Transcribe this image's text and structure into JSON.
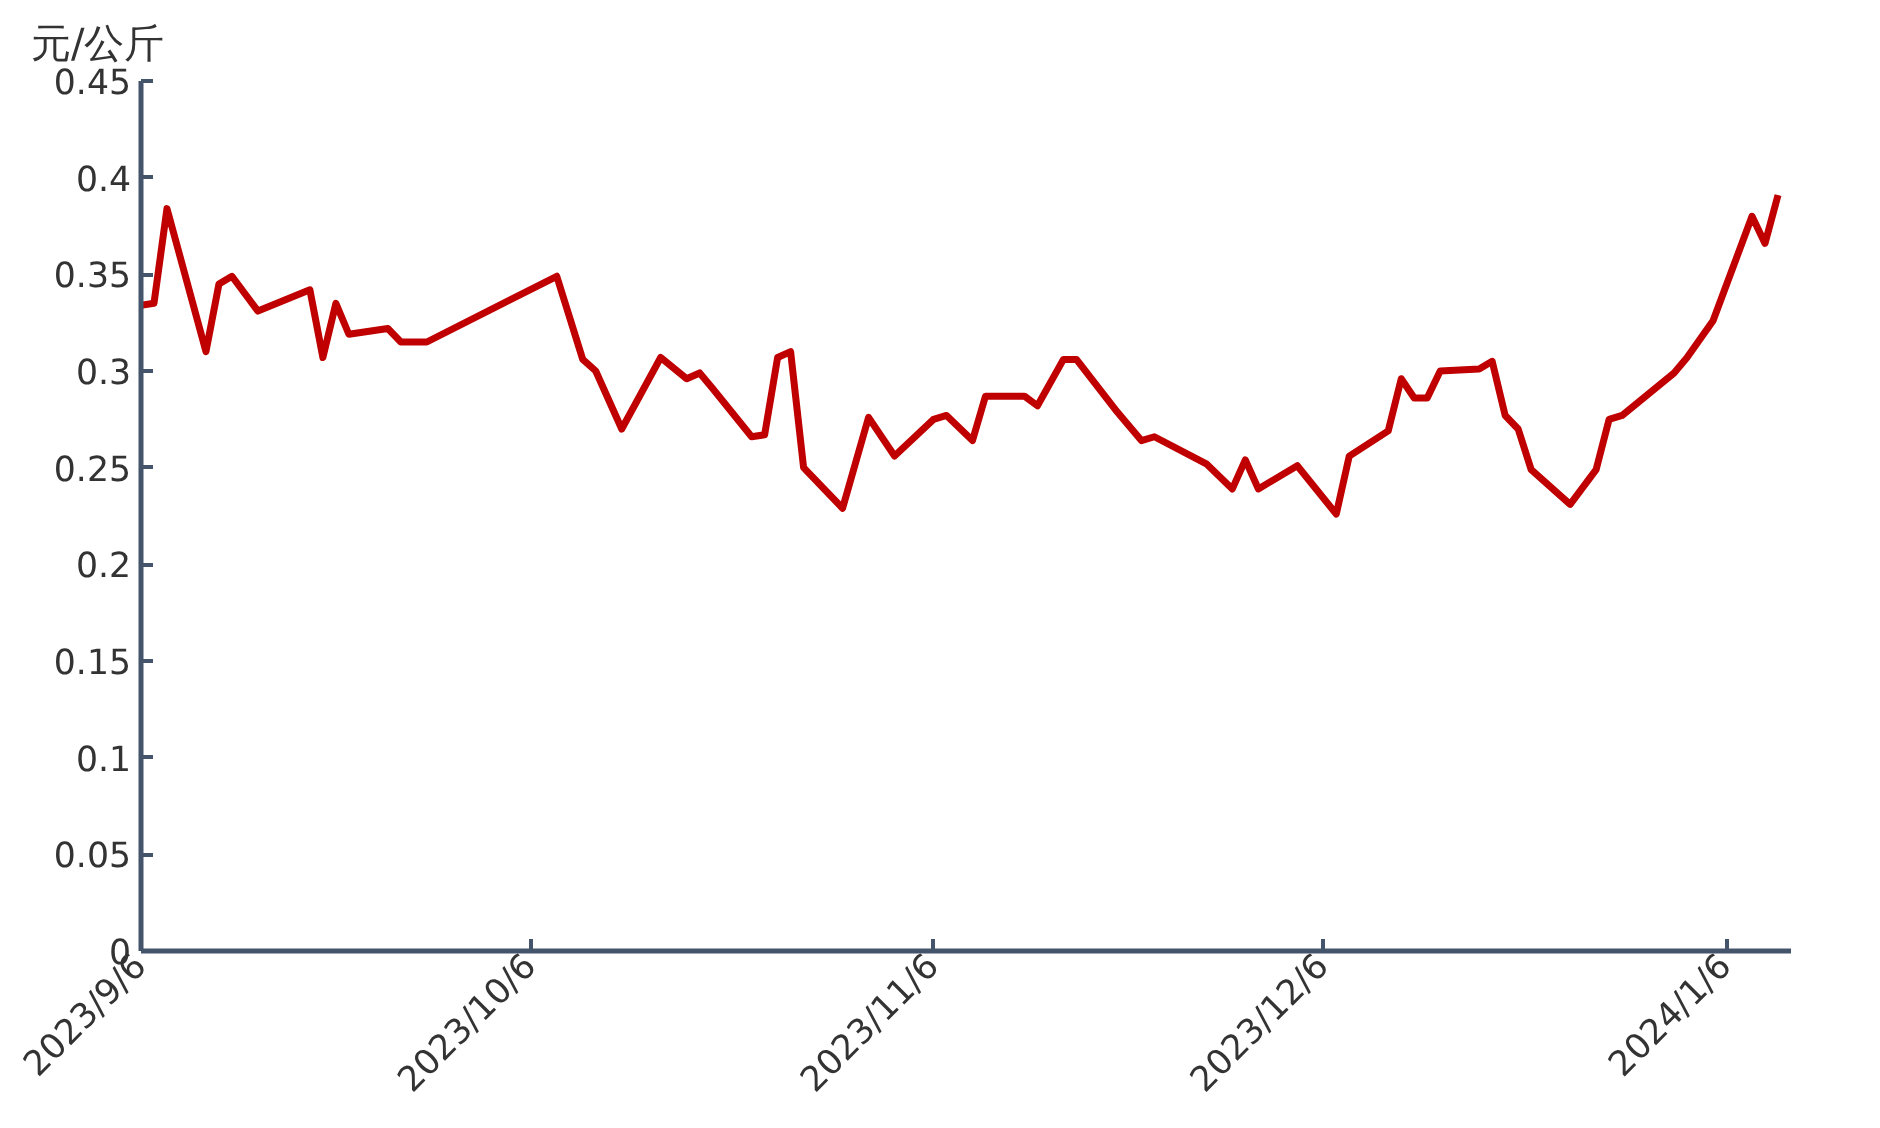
{
  "chart_data": {
    "type": "line",
    "ylabel": "元/公斤",
    "x": [
      "2023-09-06",
      "2023-09-07",
      "2023-09-08",
      "2023-09-11",
      "2023-09-12",
      "2023-09-13",
      "2023-09-15",
      "2023-09-19",
      "2023-09-20",
      "2023-09-21",
      "2023-09-22",
      "2023-09-25",
      "2023-09-26",
      "2023-09-28",
      "2023-10-08",
      "2023-10-10",
      "2023-10-11",
      "2023-10-13",
      "2023-10-16",
      "2023-10-18",
      "2023-10-19",
      "2023-10-20",
      "2023-10-23",
      "2023-10-24",
      "2023-10-25",
      "2023-10-26",
      "2023-10-27",
      "2023-10-30",
      "2023-11-01",
      "2023-11-03",
      "2023-11-06",
      "2023-11-07",
      "2023-11-09",
      "2023-11-10",
      "2023-11-13",
      "2023-11-14",
      "2023-11-16",
      "2023-11-17",
      "2023-11-20",
      "2023-11-22",
      "2023-11-23",
      "2023-11-27",
      "2023-11-29",
      "2023-11-30",
      "2023-12-01",
      "2023-12-04",
      "2023-12-07",
      "2023-12-08",
      "2023-12-11",
      "2023-12-12",
      "2023-12-13",
      "2023-12-14",
      "2023-12-15",
      "2023-12-18",
      "2023-12-19",
      "2023-12-20",
      "2023-12-21",
      "2023-12-22",
      "2023-12-25",
      "2023-12-27",
      "2023-12-28",
      "2023-12-29",
      "2024-01-02",
      "2024-01-03",
      "2024-01-05",
      "2024-01-08",
      "2024-01-09",
      "2024-01-10"
    ],
    "series": [
      {
        "color": "#c00000",
        "values": [
          0.334,
          0.335,
          0.384,
          0.31,
          0.345,
          0.349,
          0.331,
          0.342,
          0.307,
          0.335,
          0.319,
          0.322,
          0.315,
          0.315,
          0.349,
          0.306,
          0.3,
          0.27,
          0.307,
          0.296,
          0.299,
          0.291,
          0.266,
          0.267,
          0.307,
          0.31,
          0.25,
          0.229,
          0.276,
          0.256,
          0.275,
          0.277,
          0.264,
          0.287,
          0.287,
          0.282,
          0.306,
          0.306,
          0.28,
          0.264,
          0.266,
          0.252,
          0.239,
          0.254,
          0.239,
          0.251,
          0.226,
          0.256,
          0.269,
          0.296,
          0.286,
          0.286,
          0.3,
          0.301,
          0.305,
          0.277,
          0.27,
          0.249,
          0.231,
          0.249,
          0.275,
          0.277,
          0.299,
          0.307,
          0.326,
          0.38,
          0.366,
          0.391
        ]
      }
    ],
    "xlim": [
      "2023-09-06",
      "2024-01-11"
    ],
    "xticks": [
      {
        "value": "2023-09-06",
        "label": "2023/9/6"
      },
      {
        "value": "2023-10-06",
        "label": "2023/10/6"
      },
      {
        "value": "2023-11-06",
        "label": "2023/11/6"
      },
      {
        "value": "2023-12-06",
        "label": "2023/12/6"
      },
      {
        "value": "2024-01-06",
        "label": "2024/1/6"
      }
    ],
    "ylim": [
      0,
      0.45
    ],
    "yticks": [
      0,
      0.05,
      0.1,
      0.15,
      0.2,
      0.25,
      0.3,
      0.35,
      0.4,
      0.45
    ],
    "grid": false,
    "marker": "none",
    "line_style": "solid"
  }
}
